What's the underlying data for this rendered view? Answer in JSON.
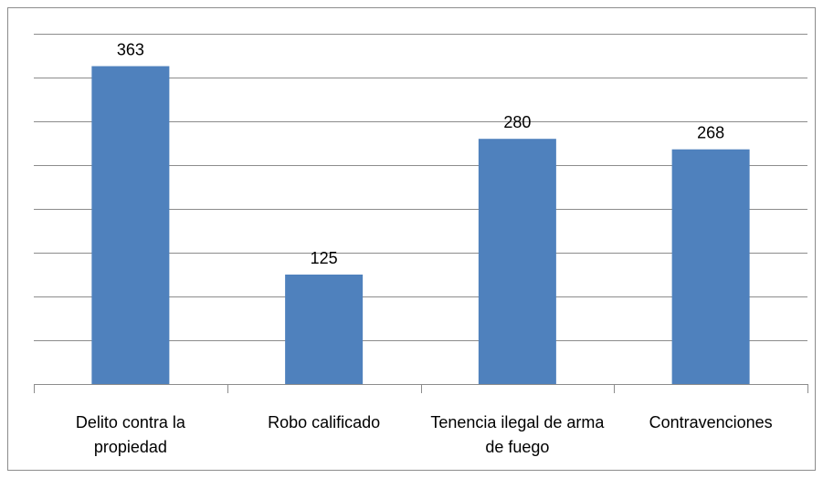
{
  "chart_data": {
    "type": "bar",
    "categories": [
      "Delito contra la propiedad",
      "Robo calificado",
      "Tenencia ilegal de arma de fuego",
      "Contravenciones"
    ],
    "values": [
      363,
      125,
      280,
      268
    ],
    "color": "#4f81bd",
    "ylim": [
      0,
      400
    ],
    "yticks": [
      0,
      50,
      100,
      150,
      200,
      250,
      300,
      350,
      400
    ],
    "grid": true
  }
}
